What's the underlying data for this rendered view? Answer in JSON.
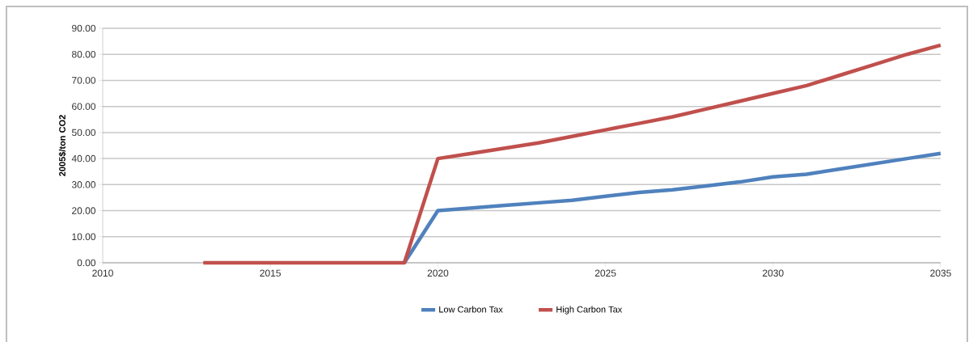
{
  "chart_data": {
    "type": "line",
    "ylabel": "2005$/ton CO2",
    "x": [
      2013,
      2014,
      2015,
      2016,
      2017,
      2018,
      2019,
      2020,
      2021,
      2022,
      2023,
      2024,
      2025,
      2026,
      2027,
      2028,
      2029,
      2030,
      2031,
      2032,
      2033,
      2034,
      2035
    ],
    "series": [
      {
        "name": "Low Carbon Tax",
        "color": "#4f81bd",
        "values": [
          null,
          null,
          null,
          null,
          null,
          null,
          0,
          20,
          21,
          22,
          23,
          24,
          25.5,
          27,
          28,
          29.5,
          31,
          33,
          34,
          36,
          38,
          40,
          42
        ]
      },
      {
        "name": "High Carbon Tax",
        "color": "#c0504d",
        "values": [
          0,
          0,
          0,
          0,
          0,
          0,
          0,
          40,
          42,
          44,
          46,
          48.5,
          51,
          53.5,
          56,
          59,
          62,
          65,
          68,
          72,
          76,
          80,
          83.5
        ]
      }
    ],
    "xlim": [
      2010,
      2035
    ],
    "xticks": [
      2010,
      2015,
      2020,
      2025,
      2030,
      2035
    ],
    "ylim": [
      0,
      90
    ],
    "yticks": [
      {
        "value": 0,
        "label": "0.00"
      },
      {
        "value": 10,
        "label": "10.00"
      },
      {
        "value": 20,
        "label": "20.00"
      },
      {
        "value": 30,
        "label": "30.00"
      },
      {
        "value": 40,
        "label": "40.00"
      },
      {
        "value": 50,
        "label": "50.00"
      },
      {
        "value": 60,
        "label": "60.00"
      },
      {
        "value": 70,
        "label": "70.00"
      },
      {
        "value": 80,
        "label": "80.00"
      },
      {
        "value": 90,
        "label": "90.00"
      }
    ],
    "grid": "y",
    "legend": "bottom",
    "marker": "none",
    "line_style": "solid"
  }
}
